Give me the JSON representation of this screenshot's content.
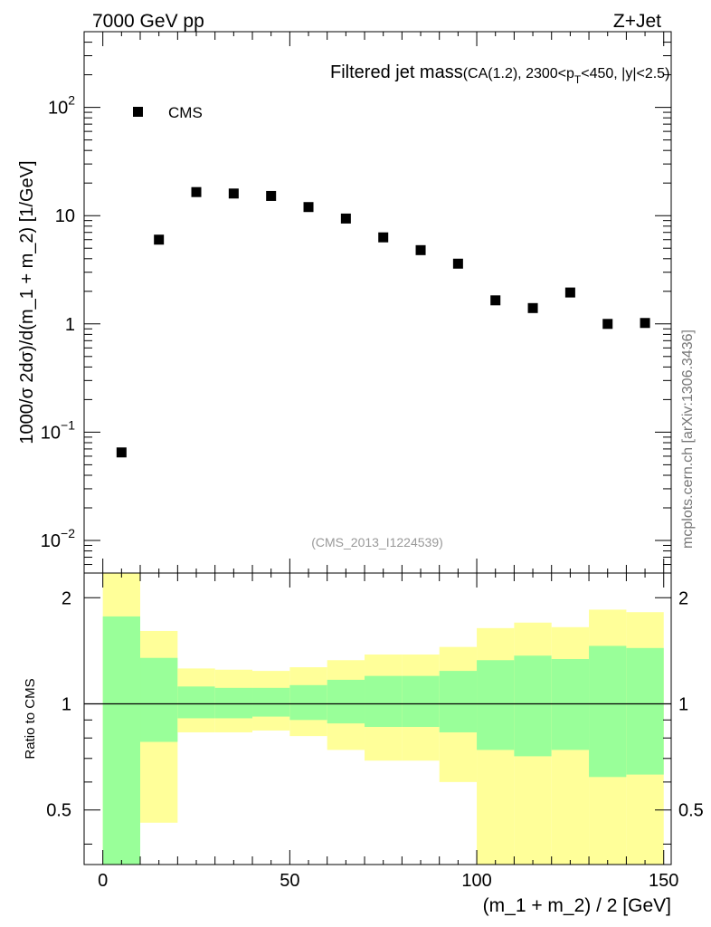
{
  "header": {
    "energy_label": "7000 GeV pp",
    "process_label": "Z+Jet",
    "side_label": "mcplots.cern.ch [arXiv:1306.3436]"
  },
  "chart_data": [
    {
      "type": "scatter",
      "title_main": "Filtered jet mass",
      "title_sub_a": "(CA(1.2), 2300<p",
      "title_sub_sub": "T",
      "title_sub_b": "<450, |y|<2.5)",
      "analysis_label": "(CMS_2013_I1224539)",
      "ylabel": "1000/σ 2dσ)/d(m_1 + m_2) [1/GeV]",
      "yscale": "log",
      "ylim": [
        0.005,
        500
      ],
      "xlim": [
        -5,
        152
      ],
      "y_tick_labels": [
        {
          "value": 0.01,
          "base": "10",
          "exp": "−2"
        },
        {
          "value": 0.1,
          "base": "10",
          "exp": "−1"
        },
        {
          "value": 1,
          "base": "1",
          "exp": ""
        },
        {
          "value": 10,
          "base": "10",
          "exp": ""
        },
        {
          "value": 100,
          "base": "10",
          "exp": "2"
        }
      ],
      "legend": {
        "label": "CMS",
        "position": "top-left"
      },
      "series": [
        {
          "name": "CMS",
          "color": "#000000",
          "x": [
            5,
            15,
            25,
            35,
            45,
            55,
            65,
            75,
            85,
            95,
            105,
            115,
            125,
            135,
            145
          ],
          "y": [
            0.065,
            6.0,
            16.5,
            16.0,
            15.2,
            12.0,
            9.4,
            6.3,
            4.8,
            3.6,
            1.65,
            1.4,
            1.95,
            1.0,
            1.02
          ]
        }
      ]
    },
    {
      "type": "area",
      "ylabel": "Ratio to CMS",
      "xlabel": "(m_1 + m_2) / 2 [GeV]",
      "yscale": "log",
      "ylim": [
        0.35,
        2.35
      ],
      "xlim": [
        -5,
        152
      ],
      "x_ticks": [
        0,
        50,
        100,
        150
      ],
      "x_tick_labels": [
        "0",
        "50",
        "100",
        "150"
      ],
      "y_ticks": [
        0.5,
        1,
        2
      ],
      "y_tick_labels": [
        "0.5",
        "1",
        "2"
      ],
      "reference_line": 1,
      "colors": {
        "yellow": "#ffff99",
        "green": "#99ff99"
      },
      "bins": [
        {
          "lo": 0,
          "hi": 10,
          "yellow_lo": 0.35,
          "yellow_hi": 2.35,
          "green_lo": 0.35,
          "green_hi": 1.77
        },
        {
          "lo": 10,
          "hi": 20,
          "yellow_lo": 0.46,
          "yellow_hi": 1.61,
          "green_lo": 0.78,
          "green_hi": 1.35
        },
        {
          "lo": 20,
          "hi": 30,
          "yellow_lo": 0.83,
          "yellow_hi": 1.26,
          "green_lo": 0.91,
          "green_hi": 1.12
        },
        {
          "lo": 30,
          "hi": 40,
          "yellow_lo": 0.83,
          "yellow_hi": 1.25,
          "green_lo": 0.91,
          "green_hi": 1.11
        },
        {
          "lo": 40,
          "hi": 50,
          "yellow_lo": 0.84,
          "yellow_hi": 1.24,
          "green_lo": 0.92,
          "green_hi": 1.11
        },
        {
          "lo": 50,
          "hi": 60,
          "yellow_lo": 0.81,
          "yellow_hi": 1.27,
          "green_lo": 0.9,
          "green_hi": 1.13
        },
        {
          "lo": 60,
          "hi": 70,
          "yellow_lo": 0.74,
          "yellow_hi": 1.33,
          "green_lo": 0.88,
          "green_hi": 1.17
        },
        {
          "lo": 70,
          "hi": 80,
          "yellow_lo": 0.69,
          "yellow_hi": 1.38,
          "green_lo": 0.86,
          "green_hi": 1.2
        },
        {
          "lo": 80,
          "hi": 90,
          "yellow_lo": 0.69,
          "yellow_hi": 1.38,
          "green_lo": 0.86,
          "green_hi": 1.2
        },
        {
          "lo": 90,
          "hi": 100,
          "yellow_lo": 0.6,
          "yellow_hi": 1.45,
          "green_lo": 0.83,
          "green_hi": 1.24
        },
        {
          "lo": 100,
          "hi": 110,
          "yellow_lo": 0.35,
          "yellow_hi": 1.64,
          "green_lo": 0.74,
          "green_hi": 1.33
        },
        {
          "lo": 110,
          "hi": 120,
          "yellow_lo": 0.35,
          "yellow_hi": 1.7,
          "green_lo": 0.71,
          "green_hi": 1.37
        },
        {
          "lo": 120,
          "hi": 130,
          "yellow_lo": 0.35,
          "yellow_hi": 1.65,
          "green_lo": 0.74,
          "green_hi": 1.34
        },
        {
          "lo": 130,
          "hi": 140,
          "yellow_lo": 0.35,
          "yellow_hi": 1.85,
          "green_lo": 0.62,
          "green_hi": 1.46
        },
        {
          "lo": 140,
          "hi": 150,
          "yellow_lo": 0.35,
          "yellow_hi": 1.82,
          "green_lo": 0.63,
          "green_hi": 1.44
        }
      ]
    }
  ]
}
